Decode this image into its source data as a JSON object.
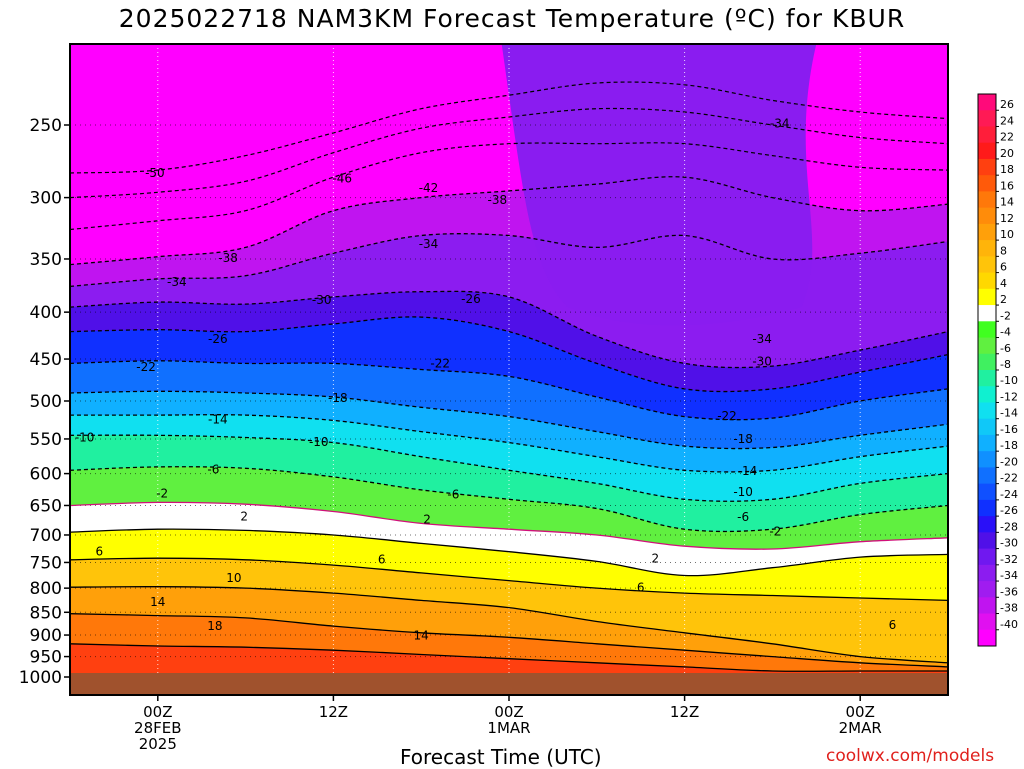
{
  "title": "2025022718 NAM3KM Forecast Temperature (ºC) for KBUR",
  "credit": "coolwx.com/models",
  "chart_data": {
    "type": "heatmap",
    "title": "2025022718 NAM3KM Forecast Temperature (ºC) for KBUR",
    "xlabel": "Forecast Time (UTC)",
    "ylabel": "",
    "x_unit": "forecast hours from 2025-02-27 18Z",
    "xlim": [
      0,
      60
    ],
    "x_ticks": [
      {
        "hour": 6,
        "lines": [
          "00Z",
          "28FEB",
          "2025"
        ]
      },
      {
        "hour": 18,
        "lines": [
          "12Z"
        ]
      },
      {
        "hour": 30,
        "lines": [
          "00Z",
          "1MAR"
        ]
      },
      {
        "hour": 42,
        "lines": [
          "12Z"
        ]
      },
      {
        "hour": 54,
        "lines": [
          "00Z",
          "2MAR"
        ]
      }
    ],
    "y_unit": "hPa",
    "y_scale": "log",
    "ylim": [
      1000,
      200
    ],
    "y_ticks": [
      250,
      300,
      350,
      400,
      450,
      500,
      550,
      600,
      650,
      700,
      750,
      800,
      850,
      900,
      950,
      1000
    ],
    "ground_level_hPa": 990,
    "colorbar": {
      "ticks": [
        26,
        24,
        22,
        20,
        18,
        16,
        14,
        12,
        10,
        8,
        6,
        4,
        2,
        -2,
        -4,
        -6,
        -8,
        -10,
        -12,
        -14,
        -16,
        -18,
        -20,
        -22,
        -24,
        -26,
        -28,
        -30,
        -32,
        -34,
        -36,
        -38,
        -40
      ],
      "colors": [
        "#ff0a7a",
        "#ff1a55",
        "#ff1e3a",
        "#ff1a1a",
        "#ff4010",
        "#ff5a0a",
        "#ff780a",
        "#ff8c0a",
        "#ffa00a",
        "#ffb40a",
        "#ffc40a",
        "#ffd800",
        "#ffff00",
        "#ffffff",
        "#40ff20",
        "#60f040",
        "#40f060",
        "#20f0a0",
        "#10f0d0",
        "#10e0f0",
        "#10c8f8",
        "#10b0ff",
        "#1090ff",
        "#1070ff",
        "#1050ff",
        "#1030ff",
        "#2a10f8",
        "#5010e8",
        "#7018f0",
        "#8c1cf0",
        "#a01cf0",
        "#c014f0",
        "#e010f0",
        "#ff00ff"
      ]
    },
    "isotherm_profiles": [
      {
        "value": 18,
        "hPa": [
          920,
          925,
          928,
          935,
          945,
          955,
          965,
          975,
          985,
          985,
          985
        ]
      },
      {
        "value": 14,
        "hPa": [
          853,
          857,
          862,
          880,
          895,
          905,
          920,
          935,
          950,
          965,
          975
        ]
      },
      {
        "value": 10,
        "hPa": [
          798,
          797,
          800,
          810,
          825,
          840,
          870,
          895,
          920,
          950,
          965
        ]
      },
      {
        "value": 6,
        "hPa": [
          745,
          742,
          745,
          755,
          770,
          785,
          800,
          810,
          815,
          820,
          825
        ]
      },
      {
        "value": 2,
        "hPa": [
          695,
          690,
          692,
          700,
          715,
          730,
          748,
          775,
          760,
          740,
          735
        ]
      },
      {
        "value": -2,
        "hPa": [
          650,
          645,
          648,
          660,
          680,
          690,
          700,
          720,
          725,
          712,
          705
        ]
      },
      {
        "value": -6,
        "hPa": [
          595,
          590,
          592,
          605,
          625,
          640,
          655,
          690,
          690,
          665,
          650
        ]
      },
      {
        "value": -10,
        "hPa": [
          545,
          545,
          548,
          555,
          575,
          595,
          615,
          640,
          640,
          615,
          600
        ]
      },
      {
        "value": -14,
        "hPa": [
          518,
          518,
          518,
          525,
          540,
          555,
          575,
          595,
          595,
          575,
          560
        ]
      },
      {
        "value": -18,
        "hPa": [
          490,
          488,
          490,
          495,
          508,
          520,
          540,
          560,
          562,
          545,
          530
        ]
      },
      {
        "value": -22,
        "hPa": [
          455,
          452,
          455,
          455,
          462,
          470,
          495,
          520,
          522,
          500,
          485
        ]
      },
      {
        "value": -26,
        "hPa": [
          420,
          418,
          420,
          412,
          405,
          420,
          455,
          485,
          485,
          465,
          445
        ]
      },
      {
        "value": -30,
        "hPa": [
          395,
          390,
          392,
          385,
          380,
          385,
          425,
          455,
          458,
          440,
          420
        ]
      },
      {
        "value": -34,
        "hPa": [
          375,
          368,
          365,
          345,
          330,
          330,
          340,
          330,
          350,
          345,
          335
        ]
      },
      {
        "value": -38,
        "hPa": [
          355,
          348,
          340,
          310,
          300,
          295,
          290,
          285,
          300,
          310,
          305
        ]
      }
    ],
    "contour_labels": [
      {
        "text": "-50",
        "hour": 5.8,
        "hPa": 282
      },
      {
        "text": "-46",
        "hour": 18.6,
        "hPa": 286
      },
      {
        "text": "-42",
        "hour": 24.5,
        "hPa": 293
      },
      {
        "text": "-38",
        "hour": 29.2,
        "hPa": 302
      },
      {
        "text": "-34",
        "hour": 48.5,
        "hPa": 249
      },
      {
        "text": "-38",
        "hour": 10.8,
        "hPa": 349
      },
      {
        "text": "-34",
        "hour": 24.5,
        "hPa": 337
      },
      {
        "text": "-34",
        "hour": 7.3,
        "hPa": 371
      },
      {
        "text": "-30",
        "hour": 17.2,
        "hPa": 388
      },
      {
        "text": "-26",
        "hour": 27.4,
        "hPa": 387
      },
      {
        "text": "-26",
        "hour": 10.1,
        "hPa": 428
      },
      {
        "text": "-34",
        "hour": 47.3,
        "hPa": 428
      },
      {
        "text": "-30",
        "hour": 47.3,
        "hPa": 453
      },
      {
        "text": "-22",
        "hour": 5.2,
        "hPa": 459
      },
      {
        "text": "-22",
        "hour": 25.3,
        "hPa": 455
      },
      {
        "text": "-18",
        "hour": 18.3,
        "hPa": 496
      },
      {
        "text": "-22",
        "hour": 44.9,
        "hPa": 519
      },
      {
        "text": "-14",
        "hour": 10.1,
        "hPa": 524
      },
      {
        "text": "-10",
        "hour": 1.0,
        "hPa": 548
      },
      {
        "text": "-10",
        "hour": 17.0,
        "hPa": 554
      },
      {
        "text": "-18",
        "hour": 46.0,
        "hPa": 550
      },
      {
        "text": "-6",
        "hour": 9.8,
        "hPa": 594
      },
      {
        "text": "-14",
        "hour": 46.3,
        "hPa": 596
      },
      {
        "text": "-2",
        "hour": 6.3,
        "hPa": 631
      },
      {
        "text": "-6",
        "hour": 26.2,
        "hPa": 632
      },
      {
        "text": "-10",
        "hour": 46.0,
        "hPa": 628
      },
      {
        "text": "2",
        "hour": 11.9,
        "hPa": 668
      },
      {
        "text": "-6",
        "hour": 46.0,
        "hPa": 669
      },
      {
        "text": "2",
        "hour": 24.4,
        "hPa": 673
      },
      {
        "text": "-2",
        "hour": 48.2,
        "hPa": 694
      },
      {
        "text": "6",
        "hour": 2.0,
        "hPa": 730
      },
      {
        "text": "6",
        "hour": 21.3,
        "hPa": 744
      },
      {
        "text": "2",
        "hour": 40.0,
        "hPa": 743
      },
      {
        "text": "10",
        "hour": 11.2,
        "hPa": 780
      },
      {
        "text": "6",
        "hour": 39.0,
        "hPa": 799
      },
      {
        "text": "14",
        "hour": 6.0,
        "hPa": 828
      },
      {
        "text": "18",
        "hour": 9.9,
        "hPa": 880
      },
      {
        "text": "14",
        "hour": 24.0,
        "hPa": 901
      },
      {
        "text": "6",
        "hour": 56.2,
        "hPa": 878
      }
    ]
  }
}
